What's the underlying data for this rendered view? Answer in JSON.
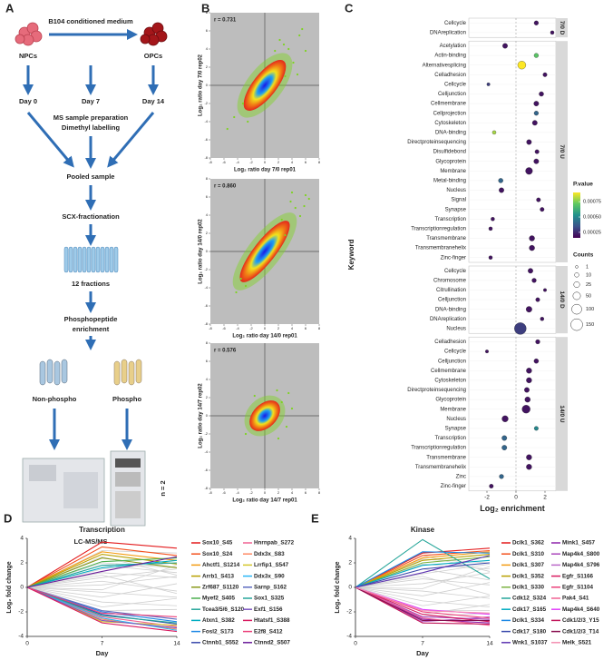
{
  "panel_labels": [
    "A",
    "B",
    "C",
    "D",
    "E"
  ],
  "workflow": {
    "npcs": "NPCs",
    "medium": "B104 conditioned medium",
    "opcs": "OPCs",
    "day0": "Day 0",
    "day7": "Day 7",
    "day14": "Day 14",
    "prep": [
      "MS sample preparation",
      "Dimethyl labelling"
    ],
    "pooled": "Pooled sample",
    "scx": "SCX-fractionation",
    "fractions": "12 fractions",
    "enrichment": [
      "Phosphopeptide",
      "enrichment"
    ],
    "nonphospho": "Non-phospho",
    "phospho": "Phospho",
    "replicates": "n = 2",
    "lcms": "LC-MS/MS"
  },
  "chart_data": [
    {
      "type": "scatter",
      "annotation": "r = 0.731",
      "xlabel": "Log₂ ratio day 7/0 rep01",
      "ylabel": "Log₂ ratio day 7/0 rep02",
      "xlim": [
        -8,
        8
      ],
      "ylim": [
        -8,
        8
      ],
      "xticks": [
        -8,
        -6,
        -4,
        -2,
        0,
        2,
        4,
        6,
        8
      ],
      "yticks": [
        -8,
        -6,
        -4,
        -2,
        0,
        2,
        4,
        6,
        8
      ],
      "color": "#7ed321",
      "x": [
        3.5,
        4.2,
        5.1,
        -4.5,
        2.8,
        6.0,
        -3.2,
        4.8,
        1.5,
        -5.5,
        3.0,
        5.5,
        2.2,
        -2.5
      ],
      "y": [
        4.0,
        2.5,
        5.5,
        -3.5,
        4.5,
        3.8,
        -2.0,
        1.2,
        3.8,
        -4.8,
        1.0,
        6.2,
        5.0,
        -4.0
      ]
    },
    {
      "type": "scatter",
      "annotation": "r = 0.860",
      "xlabel": "Log₂ ratio day 14/0 rep01",
      "ylabel": "Log₂ ratio day 14/0 rep02",
      "xlim": [
        -8,
        8
      ],
      "ylim": [
        -8,
        8
      ],
      "xticks": [
        -8,
        -6,
        -4,
        -2,
        0,
        2,
        4,
        6,
        8
      ],
      "yticks": [
        -8,
        -6,
        -4,
        -2,
        0,
        2,
        4,
        6,
        8
      ],
      "color": "#7ed321",
      "x": [
        4.5,
        5.2,
        6.0,
        3.8,
        -3.5,
        -4.2,
        2.5,
        5.8,
        6.5,
        3.0,
        -2.8,
        4.0
      ],
      "y": [
        4.8,
        3.9,
        6.2,
        5.5,
        -3.0,
        -4.5,
        3.5,
        5.0,
        5.8,
        1.8,
        -3.8,
        6.5
      ]
    },
    {
      "type": "scatter",
      "annotation": "r = 0.576",
      "xlabel": "Log₂ ratio day 14/7 rep01",
      "ylabel": "Log₂ ratio day 14/7 rep02",
      "xlim": [
        -8,
        8
      ],
      "ylim": [
        -8,
        8
      ],
      "xticks": [
        -8,
        -6,
        -4,
        -2,
        0,
        2,
        4,
        6,
        8
      ],
      "yticks": [
        -8,
        -6,
        -4,
        -2,
        0,
        2,
        4,
        6,
        8
      ],
      "color": "#7ed321",
      "x": [
        2.5,
        3.2,
        -2.8,
        1.8,
        4.0,
        -1.5,
        2.0,
        3.5
      ],
      "y": [
        1.5,
        -1.2,
        -2.0,
        2.8,
        0.8,
        2.2,
        -2.5,
        2.5
      ]
    },
    {
      "type": "dot",
      "xlabel": "Log₂ enrichment",
      "ylabel": "Keyword",
      "xlim": [
        -3.25,
        2.75
      ],
      "xticks": [
        -2,
        0,
        2
      ],
      "facets": [
        {
          "label": "7/0 D",
          "categories": [
            "Cellcycle",
            "DNAreplication"
          ],
          "values": [
            1.4,
            2.5
          ],
          "pvalues": [
            0.0002,
            0.0002
          ],
          "counts": [
            10,
            5
          ]
        },
        {
          "label": "7/0 U",
          "categories": [
            "Acetylation",
            "Actin-binding",
            "Alternativesplicing",
            "Celladhesion",
            "Cellcycle",
            "Celljunction",
            "Cellmembrane",
            "Cellprojection",
            "Cytoskeleton",
            "DNA-binding",
            "Directproteinsequencing",
            "Disulfidebond",
            "Glycoprotein",
            "Membrane",
            "Metal-binding",
            "Nucleus",
            "Signal",
            "Synapse",
            "Transcription",
            "Transcriptionregulation",
            "Transmembrane",
            "Transmembranehelix",
            "Zinc-finger"
          ],
          "values": [
            -0.75,
            1.4,
            0.4,
            2.0,
            -1.9,
            1.75,
            1.4,
            1.4,
            1.3,
            -1.5,
            0.9,
            1.45,
            1.4,
            0.9,
            -1.05,
            -1.0,
            1.55,
            1.8,
            -1.6,
            -1.75,
            1.1,
            1.1,
            -1.75
          ],
          "pvalues": [
            0.0002,
            0.0007,
            0.0009,
            0.0002,
            0.0003,
            0.0002,
            0.0002,
            0.0004,
            0.0002,
            0.0008,
            0.0002,
            0.0002,
            0.0002,
            0.0002,
            0.0004,
            0.0002,
            0.0002,
            0.0002,
            0.0002,
            0.0002,
            0.0002,
            0.0002,
            0.0002
          ],
          "counts": [
            15,
            10,
            60,
            8,
            3,
            12,
            15,
            10,
            15,
            5,
            15,
            8,
            15,
            40,
            12,
            15,
            8,
            8,
            5,
            5,
            20,
            20,
            5
          ]
        },
        {
          "label": "14/0 D",
          "categories": [
            "Cellcycle",
            "Chromosome",
            "Citrullination",
            "Celljunction",
            "DNA-binding",
            "DNAreplication",
            "Nucleus"
          ],
          "values": [
            1.0,
            1.25,
            2.0,
            1.5,
            0.9,
            1.8,
            0.3
          ],
          "pvalues": [
            0.0002,
            0.0002,
            0.0002,
            0.0002,
            0.0002,
            0.0002,
            0.0003
          ],
          "counts": [
            15,
            10,
            3,
            8,
            25,
            5,
            150
          ]
        },
        {
          "label": "14/0 U",
          "categories": [
            "Celladhesion",
            "Cellcycle",
            "Celljunction",
            "Cellmembrane",
            "Cytoskeleton",
            "Directproteinsequencing",
            "Glycoprotein",
            "Membrane",
            "Nucleus",
            "Synapse",
            "Transcription",
            "Transcriptionregulation",
            "Transmembrane",
            "Transmembranehelix",
            "Zinc",
            "Zinc-finger"
          ],
          "values": [
            1.5,
            -2.0,
            1.4,
            0.9,
            0.9,
            0.75,
            0.8,
            0.7,
            -0.75,
            1.4,
            -0.8,
            -0.8,
            0.9,
            0.9,
            -1.0,
            -1.7
          ],
          "pvalues": [
            0.0002,
            0.0002,
            0.0002,
            0.0002,
            0.0002,
            0.0002,
            0.0002,
            0.0002,
            0.0002,
            0.0005,
            0.0004,
            0.0004,
            0.0002,
            0.0002,
            0.0004,
            0.0002
          ],
          "counts": [
            10,
            3,
            12,
            20,
            20,
            15,
            20,
            60,
            30,
            8,
            15,
            15,
            20,
            20,
            10,
            8
          ]
        }
      ],
      "color_legend": {
        "title": "P.value",
        "lim": [
          0.00016,
          0.0009
        ],
        "ticks": [
          0.00075,
          {
            "value": 0.0005,
            "label": "0.00050"
          },
          0.00025
        ]
      },
      "size_legend": {
        "title": "Counts",
        "values": [
          1,
          10,
          25,
          50,
          100,
          150
        ]
      }
    },
    {
      "type": "line",
      "title": "Transcription",
      "xlabel": "Day",
      "ylabel": "Log₂ fold change",
      "x": [
        0,
        7,
        14
      ],
      "xlim": [
        0,
        14
      ],
      "xticks": [
        0,
        7,
        14
      ],
      "ylim": [
        -4,
        4
      ],
      "yticks": [
        -4,
        -2,
        0,
        2,
        4
      ],
      "background": {
        "color": "#cfcfcf",
        "values": [
          [
            0,
            1.8,
            1.2
          ],
          [
            0,
            1.5,
            2.0
          ],
          [
            0,
            1.2,
            0.8
          ],
          [
            0,
            0.8,
            1.5
          ],
          [
            0,
            0.5,
            -0.3
          ],
          [
            0,
            0.2,
            0.9
          ],
          [
            0,
            -0.4,
            -0.8
          ],
          [
            0,
            -0.8,
            0.3
          ],
          [
            0,
            -1.2,
            -1.5
          ],
          [
            0,
            -1.6,
            -0.9
          ],
          [
            0,
            2.0,
            1.6
          ],
          [
            0,
            -1.9,
            -1.8
          ],
          [
            0,
            1.0,
            -0.5
          ],
          [
            0,
            -0.2,
            1.8
          ],
          [
            0,
            3.0,
            2.8
          ],
          [
            0,
            2.5,
            1.0
          ]
        ]
      },
      "series": [
        {
          "name": "Sox10_S45",
          "color": "#e31a1c",
          "values": [
            0,
            3.7,
            3.2
          ]
        },
        {
          "name": "Sox10_S24",
          "color": "#f4511e",
          "values": [
            0,
            3.3,
            2.6
          ]
        },
        {
          "name": "Ahctf1_S1214",
          "color": "#f39c12",
          "values": [
            0,
            2.9,
            2.2
          ]
        },
        {
          "name": "Arrb1_S413",
          "color": "#b8a000",
          "values": [
            0,
            2.7,
            1.9
          ]
        },
        {
          "name": "Zrf687_S1120",
          "color": "#8a9a1b",
          "values": [
            0,
            2.4,
            1.6
          ]
        },
        {
          "name": "Myef2_S405",
          "color": "#4caf50",
          "values": [
            0,
            2.1,
            2.4
          ]
        },
        {
          "name": "Tcea3/5/6_S120",
          "color": "#26a69a",
          "values": [
            0,
            1.8,
            2.0
          ]
        },
        {
          "name": "Atxn1_S382",
          "color": "#00acc1",
          "values": [
            0,
            1.6,
            2.2
          ]
        },
        {
          "name": "Fosl2_S173",
          "color": "#1e88e5",
          "values": [
            0,
            -2.0,
            -2.8
          ]
        },
        {
          "name": "Ctnnb1_S552",
          "color": "#3949ab",
          "values": [
            0,
            -2.2,
            -3.0
          ]
        },
        {
          "name": "Hnrnpab_S272",
          "color": "#f06292",
          "values": [
            0,
            -2.4,
            -3.2
          ]
        },
        {
          "name": "Ddx3x_S83",
          "color": "#ff8a65",
          "values": [
            0,
            -2.6,
            -3.4
          ]
        },
        {
          "name": "Lrrfip1_S547",
          "color": "#d4c62a",
          "values": [
            0,
            -2.8,
            -3.1
          ]
        },
        {
          "name": "Ddx3x_S90",
          "color": "#29b6f6",
          "values": [
            0,
            -2.5,
            -3.5
          ]
        },
        {
          "name": "Sarnp_S162",
          "color": "#5c6bc0",
          "values": [
            0,
            -1.9,
            -2.6
          ]
        },
        {
          "name": "Sox1_S325",
          "color": "#26a69a",
          "values": [
            0,
            -2.3,
            -2.9
          ]
        },
        {
          "name": "Exf1_S156",
          "color": "#7e57c2",
          "values": [
            0,
            -2.7,
            -3.3
          ]
        },
        {
          "name": "Htatsf1_S388",
          "color": "#d81b60",
          "values": [
            0,
            -2.9,
            -3.6
          ]
        },
        {
          "name": "E2f8_S412",
          "color": "#ec407a",
          "values": [
            0,
            -2.1,
            -2.4
          ]
        },
        {
          "name": "Ctnnd2_S507",
          "color": "#6a1b9a",
          "values": [
            0,
            1.3,
            2.5
          ]
        }
      ]
    },
    {
      "type": "line",
      "title": "Kinase",
      "xlabel": "Day",
      "ylabel": "Log₂ fold change",
      "x": [
        0,
        7,
        14
      ],
      "xlim": [
        0,
        14
      ],
      "xticks": [
        0,
        7,
        14
      ],
      "ylim": [
        -4,
        4
      ],
      "yticks": [
        -4,
        -2,
        0,
        2,
        4
      ],
      "background": {
        "color": "#cfcfcf",
        "values": [
          [
            0,
            1.9,
            1.5
          ],
          [
            0,
            1.5,
            0.6
          ],
          [
            0,
            1.1,
            1.9
          ],
          [
            0,
            0.7,
            0.2
          ],
          [
            0,
            0.3,
            1.2
          ],
          [
            0,
            -0.3,
            -0.9
          ],
          [
            0,
            -0.7,
            0.4
          ],
          [
            0,
            -1.1,
            -1.6
          ],
          [
            0,
            -1.5,
            -0.7
          ],
          [
            0,
            -1.9,
            -1.9
          ],
          [
            0,
            2.3,
            2.0
          ],
          [
            0,
            -2.2,
            -1.4
          ],
          [
            0,
            0.9,
            -0.6
          ],
          [
            0,
            -0.1,
            1.7
          ],
          [
            0,
            2.6,
            1.3
          ],
          [
            0,
            -2.4,
            -2.1
          ]
        ]
      },
      "series": [
        {
          "name": "Dclk1_S362",
          "color": "#e31a1c",
          "values": [
            0,
            2.8,
            3.2
          ]
        },
        {
          "name": "Dclk1_S310",
          "color": "#f4511e",
          "values": [
            0,
            2.6,
            3.0
          ]
        },
        {
          "name": "Dclk1_S307",
          "color": "#f39c12",
          "values": [
            0,
            2.4,
            2.9
          ]
        },
        {
          "name": "Dclk1_S352",
          "color": "#b8a000",
          "values": [
            0,
            2.2,
            2.7
          ]
        },
        {
          "name": "Dclk1_S330",
          "color": "#7cb342",
          "values": [
            0,
            2.0,
            2.5
          ]
        },
        {
          "name": "Cdk12_S324",
          "color": "#26a69a",
          "values": [
            0,
            3.9,
            0.7
          ]
        },
        {
          "name": "Cdk17_S165",
          "color": "#00acc1",
          "values": [
            0,
            1.8,
            2.2
          ]
        },
        {
          "name": "Dclk1_S334",
          "color": "#1e88e5",
          "values": [
            0,
            2.9,
            2.8
          ]
        },
        {
          "name": "Cdk17_S180",
          "color": "#3949ab",
          "values": [
            0,
            1.5,
            2.0
          ]
        },
        {
          "name": "Wnk1_S1037",
          "color": "#5e35b1",
          "values": [
            0,
            1.2,
            2.6
          ]
        },
        {
          "name": "Mink1_S457",
          "color": "#8e24aa",
          "values": [
            0,
            -2.6,
            -2.9
          ]
        },
        {
          "name": "Map4k4_S800",
          "color": "#ab47bc",
          "values": [
            0,
            -2.4,
            -2.6
          ]
        },
        {
          "name": "Map4k4_S796",
          "color": "#ba68c8",
          "values": [
            0,
            -2.8,
            -2.4
          ]
        },
        {
          "name": "Egfr_S1166",
          "color": "#d81b60",
          "values": [
            0,
            -2.2,
            -2.8
          ]
        },
        {
          "name": "Egfr_S1104",
          "color": "#ec407a",
          "values": [
            0,
            -2.0,
            -2.5
          ]
        },
        {
          "name": "Pak4_S41",
          "color": "#f06292",
          "values": [
            0,
            -2.5,
            -3.1
          ]
        },
        {
          "name": "Map4k4_S640",
          "color": "#e040fb",
          "values": [
            0,
            -1.8,
            -2.2
          ]
        },
        {
          "name": "Cdk1/2/3_Y15",
          "color": "#c2185b",
          "values": [
            0,
            -2.9,
            -3.0
          ]
        },
        {
          "name": "Cdk1/2/3_T14",
          "color": "#880e4f",
          "values": [
            0,
            -2.7,
            -2.7
          ]
        },
        {
          "name": "Melk_S521",
          "color": "#f48fb1",
          "values": [
            0,
            -1.9,
            -2.1
          ]
        }
      ]
    }
  ]
}
